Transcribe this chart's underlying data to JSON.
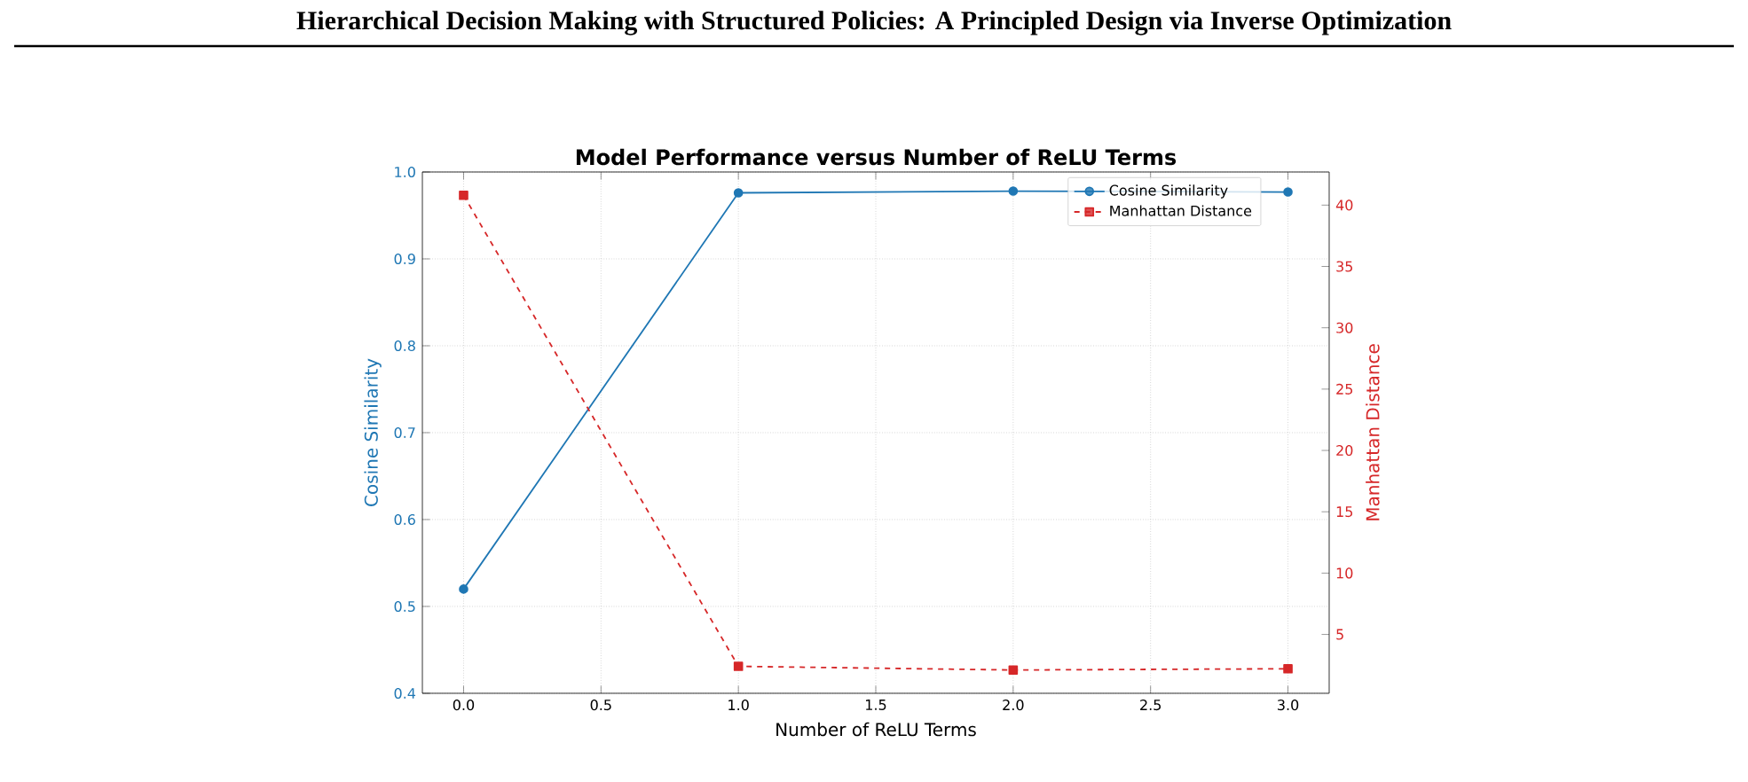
{
  "chart_data": {
    "type": "line",
    "title": "Model Performance versus Number of ReLU Terms",
    "xlabel": "Number of ReLU Terms",
    "ylabel": "Cosine Similarity",
    "y2label": "Manhattan Distance",
    "annotations": [
      "Hierarchical Decision Making with Structured Policies: A Principled Design via Inverse Optimization"
    ],
    "x": [
      0,
      1,
      2,
      3
    ],
    "xlim": [
      -0.15,
      3.15
    ],
    "xticks": [
      {
        "value": 0,
        "label": "0.0"
      },
      {
        "value": 0.5,
        "label": "0.5"
      },
      {
        "value": 1,
        "label": "1.0"
      },
      {
        "value": 1.5,
        "label": "1.5"
      },
      {
        "value": 2,
        "label": "2.0"
      },
      {
        "value": 2.5,
        "label": "2.5"
      },
      {
        "value": 3,
        "label": "3.0"
      }
    ],
    "ylim": [
      0.4,
      1.0
    ],
    "yticks": [
      0.4,
      0.5,
      0.6,
      0.7,
      0.8,
      0.9,
      {
        "value": 1.0,
        "label": "1.0"
      }
    ],
    "y2lim": [
      0.2,
      42.7
    ],
    "y2ticks": [
      5,
      10,
      15,
      20,
      25,
      30,
      35,
      40
    ],
    "grid": true,
    "legend": "top right",
    "series": [
      {
        "name": "Cosine Similarity",
        "color": "#1f77b4",
        "marker": "circle",
        "line_style": "solid",
        "values": [
          0.52,
          0.976,
          0.978,
          0.977
        ]
      },
      {
        "name": "Manhattan Distance",
        "color": "#d62728",
        "marker": "square",
        "line_style": "dashed",
        "axis": "y2",
        "values": [
          40.8,
          2.4,
          2.1,
          2.2
        ]
      }
    ]
  }
}
